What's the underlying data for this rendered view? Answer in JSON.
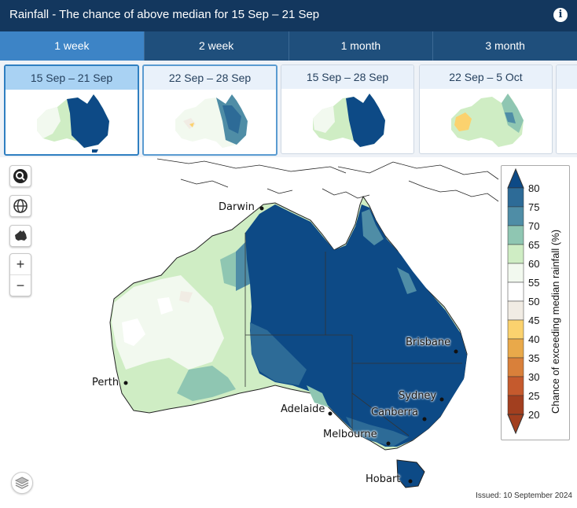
{
  "header": {
    "title": "Rainfall - The chance of above median for 15 Sep – 21 Sep",
    "info_icon": "info-icon"
  },
  "tabs": [
    {
      "label": "1 week",
      "active": true
    },
    {
      "label": "2 week",
      "active": false
    },
    {
      "label": "1 month",
      "active": false
    },
    {
      "label": "3 month",
      "active": false
    }
  ],
  "thumbnails": [
    {
      "label": "15 Sep – 21 Sep",
      "active": true
    },
    {
      "label": "22 Sep – 28 Sep",
      "active": false
    },
    {
      "label": "15 Sep – 28 Sep",
      "active": false
    },
    {
      "label": "22 Sep – 5 Oct",
      "active": false
    }
  ],
  "map_controls": {
    "search": "search-icon",
    "globe": "globe-icon",
    "australia": "australia-icon",
    "zoom_in": "+",
    "zoom_out": "−",
    "layers": "layers-icon"
  },
  "cities": {
    "darwin": "Darwin",
    "brisbane": "Brisbane",
    "sydney": "Sydney",
    "canberra": "Canberra",
    "melbourne": "Melbourne",
    "adelaide": "Adelaide",
    "perth": "Perth",
    "hobart": "Hobart"
  },
  "legend": {
    "title": "Chance of exceeding median rainfall (%)",
    "ticks": [
      "80",
      "75",
      "70",
      "65",
      "60",
      "55",
      "50",
      "45",
      "40",
      "35",
      "30",
      "25",
      "20"
    ],
    "colors": {
      "80": "#0d4a86",
      "75": "#2d6b97",
      "70": "#4f8da6",
      "65": "#8fc6b2",
      "60": "#cfedc4",
      "55": "#f2f9ef",
      "50": "#ffffff",
      "45": "#f1ece4",
      "40": "#fbd26e",
      "35": "#e9a94a",
      "30": "#d9803a",
      "25": "#c55a2d",
      "20": "#a23f1f"
    }
  },
  "footer": {
    "issued": "Issued: 10 September 2024"
  }
}
